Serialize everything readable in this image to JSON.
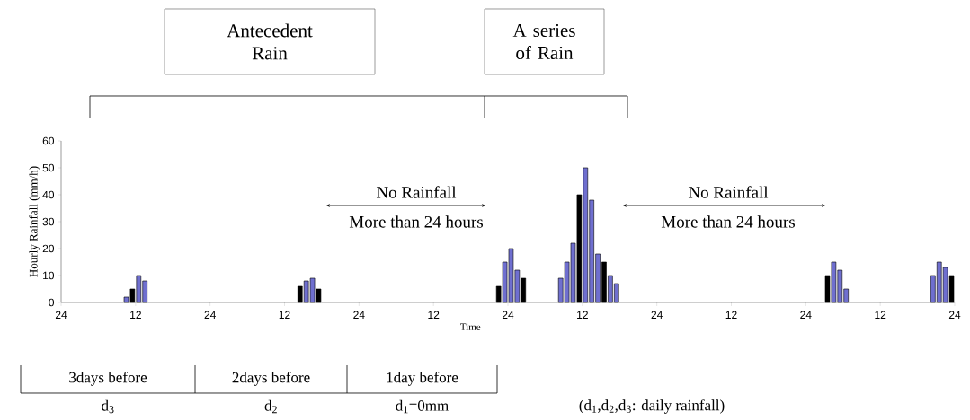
{
  "chart_data": {
    "type": "bar",
    "ylabel": "Hourly Rainfall (mm/h)",
    "xlabel": "Time",
    "categories": [
      "24",
      null,
      null,
      null,
      null,
      null,
      null,
      null,
      null,
      null,
      null,
      null,
      null,
      null,
      null,
      null,
      null,
      null,
      null,
      null,
      null,
      null,
      null,
      null,
      "12",
      null,
      null,
      null,
      null,
      null,
      null,
      null,
      null,
      null,
      null,
      null,
      null,
      null,
      null,
      null,
      null,
      null,
      null,
      null,
      null,
      null,
      null,
      null,
      "24",
      null,
      null,
      null,
      null,
      null,
      null,
      null,
      null,
      null,
      null,
      null,
      null,
      null,
      null,
      null,
      null,
      null,
      null,
      null,
      null,
      null,
      null,
      null,
      "12",
      null,
      null,
      null,
      null,
      null,
      null,
      null,
      null,
      null,
      null,
      null,
      null,
      null,
      null,
      null,
      null,
      null,
      null,
      null,
      null,
      null,
      null,
      null,
      "24",
      null,
      null,
      null,
      null,
      null,
      null,
      null,
      null,
      null,
      null,
      null,
      null,
      null,
      null,
      null,
      null,
      null,
      null,
      null,
      null,
      null,
      null,
      null,
      "12",
      null,
      null,
      null,
      null,
      null,
      null,
      null,
      null,
      null,
      null,
      null,
      null,
      null,
      null,
      null,
      null,
      null,
      null,
      null,
      null,
      null,
      null,
      null,
      "24",
      null,
      null,
      null,
      null,
      null,
      null,
      null,
      null,
      null,
      null,
      null,
      null,
      null,
      null,
      null,
      null,
      null,
      null,
      null,
      null,
      null,
      null,
      null,
      "12",
      null,
      null,
      null,
      null,
      null,
      null,
      null,
      null,
      null,
      null,
      null,
      null,
      null,
      null,
      null,
      null,
      null,
      null,
      null,
      null,
      null,
      null,
      null,
      "24",
      null,
      null,
      null,
      null,
      null,
      null,
      null,
      null,
      null,
      null,
      null,
      null,
      null,
      null,
      null,
      null,
      null,
      null,
      null,
      null,
      null,
      null,
      null,
      "12",
      null,
      null,
      null,
      null,
      null,
      null,
      null,
      null,
      null,
      null,
      null,
      null,
      null,
      null,
      null,
      null,
      null,
      null,
      null,
      null,
      null,
      null,
      null,
      "24",
      null,
      null,
      null,
      null,
      null,
      null,
      null,
      null,
      null,
      null,
      null,
      null,
      null,
      null,
      null,
      null,
      null,
      null,
      null,
      null,
      null,
      null,
      null,
      "12",
      null,
      null,
      null,
      null,
      null,
      null,
      null,
      null,
      null,
      null,
      null,
      null,
      null,
      null,
      null,
      null,
      null,
      null,
      null,
      null,
      null,
      null,
      null,
      "24"
    ],
    "values": [
      null,
      null,
      null,
      null,
      null,
      null,
      null,
      null,
      null,
      null,
      null,
      null,
      null,
      null,
      null,
      null,
      null,
      null,
      null,
      null,
      null,
      2,
      null,
      5,
      null,
      10,
      null,
      8,
      null,
      null,
      null,
      null,
      null,
      null,
      null,
      null,
      null,
      null,
      null,
      null,
      null,
      null,
      null,
      null,
      null,
      null,
      null,
      null,
      null,
      null,
      null,
      null,
      null,
      null,
      null,
      null,
      null,
      null,
      null,
      null,
      null,
      null,
      null,
      null,
      null,
      null,
      null,
      null,
      null,
      null,
      null,
      null,
      null,
      null,
      null,
      null,
      null,
      6,
      null,
      8,
      null,
      9,
      null,
      5,
      null,
      null,
      null,
      null,
      null,
      null,
      null,
      null,
      null,
      null,
      null,
      null,
      null,
      null,
      null,
      null,
      null,
      null,
      null,
      null,
      null,
      null,
      null,
      null,
      null,
      null,
      null,
      null,
      null,
      null,
      null,
      null,
      null,
      null,
      null,
      null,
      null,
      null,
      null,
      null,
      null,
      null,
      null,
      null,
      null,
      null,
      null,
      null,
      null,
      null,
      null,
      null,
      null,
      null,
      null,
      null,
      null,
      6,
      null,
      15,
      null,
      20,
      null,
      12,
      null,
      9,
      null,
      null,
      null,
      null,
      null,
      null,
      null,
      null,
      null,
      null,
      null,
      9,
      null,
      15,
      null,
      22,
      null,
      40,
      null,
      50,
      null,
      38,
      null,
      18,
      null,
      15,
      null,
      10,
      null,
      7,
      null,
      null,
      null,
      null,
      null,
      null,
      null,
      null,
      null,
      null,
      null,
      null,
      null,
      null,
      null,
      null,
      null,
      null,
      null,
      null,
      null,
      null,
      null,
      null,
      null,
      null,
      null,
      null,
      null,
      null,
      null,
      null,
      null,
      null,
      null,
      null,
      null,
      null,
      null,
      null,
      null,
      null,
      null,
      null,
      null,
      null,
      null,
      null,
      null,
      null,
      null,
      null,
      null,
      null,
      null,
      null,
      null,
      null,
      null,
      null,
      null,
      null,
      null,
      null,
      null,
      null,
      null,
      10,
      null,
      15,
      null,
      12,
      null,
      5,
      null,
      null,
      null,
      null,
      null,
      null,
      null,
      null,
      null,
      null,
      null,
      null,
      null,
      null,
      null,
      null,
      null,
      null,
      null,
      null,
      null,
      null,
      null,
      null,
      null,
      null,
      null,
      10,
      null,
      15,
      null,
      13,
      null,
      10,
      null
    ],
    "colors": [
      null,
      null,
      null,
      null,
      null,
      null,
      null,
      null,
      null,
      null,
      null,
      null,
      null,
      null,
      null,
      null,
      null,
      null,
      null,
      null,
      null,
      "#6f6fcf",
      null,
      "#000000",
      null,
      "#6f6fcf",
      null,
      "#6f6fcf",
      null,
      null,
      null,
      null,
      null,
      null,
      null,
      null,
      null,
      null,
      null,
      null,
      null,
      null,
      null,
      null,
      null,
      null,
      null,
      null,
      null,
      null,
      null,
      null,
      null,
      null,
      null,
      null,
      null,
      null,
      null,
      null,
      null,
      null,
      null,
      null,
      null,
      null,
      null,
      null,
      null,
      null,
      null,
      null,
      null,
      null,
      null,
      null,
      null,
      "#000000",
      null,
      "#6f6fcf",
      null,
      "#6f6fcf",
      null,
      "#000000",
      null,
      null,
      null,
      null,
      null,
      null,
      null,
      null,
      null,
      null,
      null,
      null,
      null,
      null,
      null,
      null,
      null,
      null,
      null,
      null,
      null,
      null,
      null,
      null,
      null,
      null,
      null,
      null,
      null,
      null,
      null,
      null,
      null,
      null,
      null,
      null,
      null,
      null,
      null,
      null,
      null,
      null,
      null,
      null,
      null,
      null,
      null,
      null,
      null,
      null,
      null,
      null,
      null,
      null,
      null,
      null,
      null,
      "#000000",
      null,
      "#6f6fcf",
      null,
      "#6f6fcf",
      null,
      "#6f6fcf",
      null,
      "#000000",
      null,
      null,
      null,
      null,
      null,
      null,
      null,
      null,
      null,
      null,
      null,
      "#6f6fcf",
      null,
      "#6f6fcf",
      null,
      "#6f6fcf",
      null,
      "#000000",
      null,
      "#6f6fcf",
      null,
      "#6f6fcf",
      null,
      "#6f6fcf",
      null,
      "#000000",
      null,
      "#6f6fcf",
      null,
      "#6f6fcf",
      null,
      null,
      null,
      null,
      null,
      null,
      null,
      null,
      null,
      null,
      null,
      null,
      null,
      null,
      null,
      null,
      null,
      null,
      null,
      null,
      null,
      null,
      null,
      null,
      null,
      null,
      null,
      null,
      null,
      null,
      null,
      null,
      null,
      null,
      null,
      null,
      null,
      null,
      null,
      null,
      null,
      null,
      null,
      null,
      null,
      null,
      null,
      null,
      null,
      null,
      null,
      null,
      null,
      null,
      null,
      null,
      null,
      null,
      null,
      null,
      null,
      null,
      null,
      null,
      null,
      null,
      null,
      "#000000",
      null,
      "#6f6fcf",
      null,
      "#6f6fcf",
      null,
      "#6f6fcf",
      null,
      null,
      null,
      null,
      null,
      null,
      null,
      null,
      null,
      null,
      null,
      null,
      null,
      null,
      null,
      null,
      null,
      null,
      null,
      null,
      null,
      null,
      null,
      null,
      null,
      null,
      null,
      "#6f6fcf",
      null,
      "#6f6fcf",
      null,
      "#6f6fcf",
      null,
      "#000000",
      null
    ],
    "ylim": [
      0,
      60
    ],
    "yticks": [
      0,
      10,
      20,
      30,
      40,
      50,
      60
    ],
    "annotations": [
      "Antecedent Rain",
      "A series of Rain",
      "No Rainfall",
      "More than 24 hours",
      "No Rainfall",
      "More than 24 hours",
      "3days before",
      "2days before",
      "1day before",
      "d$_{3}$",
      "d$_{2}$",
      "d$_{1}$=0mm",
      "(d$_{1}$,d$_{2}$,d$_{3}$: daily rainfall)"
    ]
  }
}
